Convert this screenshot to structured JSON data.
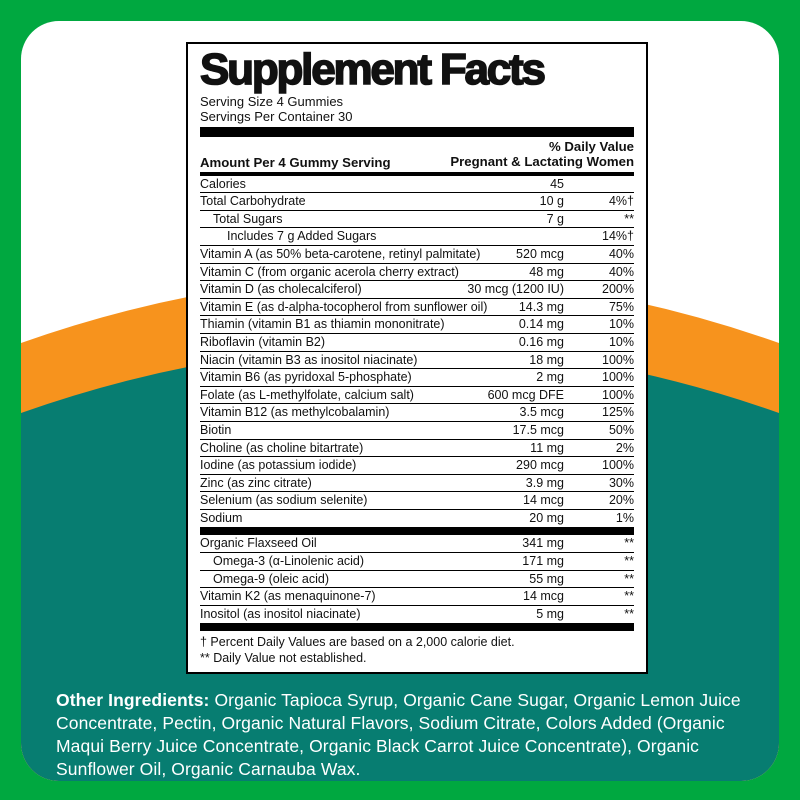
{
  "colors": {
    "background_green": "#00A840",
    "arc_orange": "#F7931D",
    "arc_teal": "#077D71",
    "panel_bg": "#FFFFFF",
    "text_black": "#111111",
    "other_ingredients_text": "#FFFFFF"
  },
  "panel": {
    "title": "Supplement Facts",
    "serving_size": "Serving Size 4 Gummies",
    "servings_per_container": "Servings Per Container 30",
    "column_left_header": "Amount Per 4 Gummy Serving",
    "column_right_header_line1": "% Daily Value",
    "column_right_header_line2": "Pregnant & Lactating Women",
    "rows": [
      {
        "name": "Calories",
        "amount": "45",
        "pct": "",
        "indent": 0,
        "sep_after": "thin"
      },
      {
        "name": "Total Carbohydrate",
        "amount": "10 g",
        "pct": "4%†",
        "indent": 0,
        "sep_after": "thin"
      },
      {
        "name": "Total Sugars",
        "amount": "7 g",
        "pct": "**",
        "indent": 1,
        "sep_after": "thin"
      },
      {
        "name": "Includes 7 g Added Sugars",
        "amount": "",
        "pct": "14%†",
        "indent": 2,
        "sep_after": "thin"
      },
      {
        "name": "Vitamin A (as 50% beta-carotene, retinyl palmitate)",
        "amount": "520 mcg",
        "pct": "40%",
        "indent": 0,
        "sep_after": "thin"
      },
      {
        "name": "Vitamin C (from organic acerola cherry extract)",
        "amount": "48 mg",
        "pct": "40%",
        "indent": 0,
        "sep_after": "thin"
      },
      {
        "name": "Vitamin D (as cholecalciferol)",
        "amount": "30 mcg (1200 IU)",
        "pct": "200%",
        "indent": 0,
        "sep_after": "thin"
      },
      {
        "name": "Vitamin E (as d-alpha-tocopherol from sunflower oil)",
        "amount": "14.3 mg",
        "pct": "75%",
        "indent": 0,
        "sep_after": "thin"
      },
      {
        "name": "Thiamin (vitamin B1 as thiamin mononitrate)",
        "amount": "0.14 mg",
        "pct": "10%",
        "indent": 0,
        "sep_after": "thin"
      },
      {
        "name": "Riboflavin (vitamin B2)",
        "amount": "0.16 mg",
        "pct": "10%",
        "indent": 0,
        "sep_after": "thin"
      },
      {
        "name": "Niacin (vitamin B3 as inositol niacinate)",
        "amount": "18 mg",
        "pct": "100%",
        "indent": 0,
        "sep_after": "thin"
      },
      {
        "name": "Vitamin B6 (as pyridoxal 5-phosphate)",
        "amount": "2 mg",
        "pct": "100%",
        "indent": 0,
        "sep_after": "thin"
      },
      {
        "name": "Folate (as L-methylfolate, calcium salt)",
        "amount": "600 mcg DFE",
        "pct": "100%",
        "indent": 0,
        "sep_after": "thin"
      },
      {
        "name": "Vitamin B12 (as methylcobalamin)",
        "amount": "3.5 mcg",
        "pct": "125%",
        "indent": 0,
        "sep_after": "thin"
      },
      {
        "name": "Biotin",
        "amount": "17.5 mcg",
        "pct": "50%",
        "indent": 0,
        "sep_after": "thin"
      },
      {
        "name": "Choline (as choline bitartrate)",
        "amount": "11 mg",
        "pct": "2%",
        "indent": 0,
        "sep_after": "thin"
      },
      {
        "name": "Iodine (as potassium iodide)",
        "amount": "290 mcg",
        "pct": "100%",
        "indent": 0,
        "sep_after": "thin"
      },
      {
        "name": "Zinc (as zinc citrate)",
        "amount": "3.9 mg",
        "pct": "30%",
        "indent": 0,
        "sep_after": "thin"
      },
      {
        "name": "Selenium (as sodium selenite)",
        "amount": "14 mcg",
        "pct": "20%",
        "indent": 0,
        "sep_after": "thin"
      },
      {
        "name": "Sodium",
        "amount": "20 mg",
        "pct": "1%",
        "indent": 0,
        "sep_after": "thick"
      },
      {
        "name": "Organic Flaxseed Oil",
        "amount": "341 mg",
        "pct": "**",
        "indent": 0,
        "sep_after": "thin"
      },
      {
        "name": "Omega-3 (α-Linolenic acid)",
        "amount": "171 mg",
        "pct": "**",
        "indent": 1,
        "sep_after": "thin"
      },
      {
        "name": "Omega-9 (oleic acid)",
        "amount": "55 mg",
        "pct": "**",
        "indent": 1,
        "sep_after": "thin"
      },
      {
        "name": "Vitamin K2 (as menaquinone-7)",
        "amount": "14 mcg",
        "pct": "**",
        "indent": 0,
        "sep_after": "thin"
      },
      {
        "name": "Inositol (as inositol niacinate)",
        "amount": "5 mg",
        "pct": "**",
        "indent": 0,
        "sep_after": "thick"
      }
    ],
    "footnote_line1": "† Percent Daily Values are based on a 2,000 calorie diet.",
    "footnote_line2": "** Daily Value not established."
  },
  "other_ingredients": {
    "label": "Other Ingredients:",
    "text": " Organic Tapioca Syrup, Organic Cane Sugar, Organic Lemon Juice Concentrate, Pectin, Organic Natural Flavors, Sodium Citrate, Colors Added (Organic Maqui Berry Juice Concentrate, Organic Black Carrot Juice Concentrate), Organic Sunflower Oil, Organic Carnauba Wax."
  }
}
